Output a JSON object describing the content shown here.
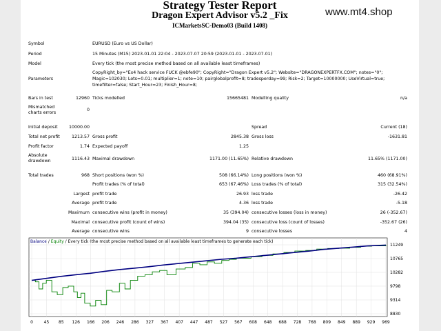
{
  "header": {
    "title": "Strategy Tester Report",
    "subtitle": "Dragon Expert Advisor v5.2 _Fix",
    "server": "ICMarketsSC-Demo03 (Build 1408)",
    "watermark": "www.mt4.shop"
  },
  "settings": {
    "symbol_label": "Symbol",
    "symbol_value": "EURUSD (Euro vs US Dollar)",
    "period_label": "Period",
    "period_value": "15 Minutes (M15) 2023.01.01 22:04 - 2023.07.07 20:59 (2023.01.01 - 2023.07.01)",
    "model_label": "Model",
    "model_value": "Every tick (the most precise method based on all available least timeframes)",
    "parameters_label": "Parameters",
    "parameters_line1": "CopyRight_by=\"Ex4 hack service FUCK @ebfe90\"; CopyRight=\"Dragon Expert v5.2\"; Website=\"DRAGONEXPERTFX.COM\"; notes=\"0\";",
    "parameters_line2": "Magic=102030; Lots=0.01; multiplier=1; note=10; pairglobalprofit=8; tradesperday=99; Risk=2; Target=10000000; UseVirtual=true;",
    "parameters_line3": "timefilter=false; Start_Hour=23; Finish_Hour=8;"
  },
  "test": {
    "bars_label": "Bars in test",
    "bars_value": "12960",
    "ticks_label": "Ticks modelled",
    "ticks_value": "15665481",
    "quality_label": "Modelling quality",
    "quality_value": "n/a",
    "mismatch_label_1": "Mismatched",
    "mismatch_label_2": "charts errors",
    "mismatch_value": "0"
  },
  "results": {
    "initial_deposit_label": "Initial deposit",
    "initial_deposit": "10000.00",
    "spread_label": "Spread",
    "spread_value": "Current (18)",
    "net_profit_label": "Total net profit",
    "net_profit": "1213.57",
    "gross_profit_label": "Gross profit",
    "gross_profit": "2845.38",
    "gross_loss_label": "Gross loss",
    "gross_loss": "-1631.81",
    "profit_factor_label": "Profit factor",
    "profit_factor": "1.74",
    "expected_payoff_label": "Expected payoff",
    "expected_payoff": "1.25",
    "abs_drawdown_label_1": "Absolute",
    "abs_drawdown_label_2": "drawdown",
    "abs_drawdown": "1116.43",
    "max_drawdown_label": "Maximal drawdown",
    "max_drawdown": "1171.00 (11.65%)",
    "rel_drawdown_label": "Relative drawdown",
    "rel_drawdown": "11.65% (1171.00)",
    "total_trades_label": "Total trades",
    "total_trades": "968",
    "short_label": "Short positions (won %)",
    "short_value": "508 (66.14%)",
    "long_label": "Long positions (won %)",
    "long_value": "460 (68.91%)",
    "profit_trades_label": "Profit trades (% of total)",
    "profit_trades": "653 (67.46%)",
    "loss_trades_label": "Loss trades (% of total)",
    "loss_trades": "315 (32.54%)",
    "largest_label": "Largest",
    "largest_profit_label": "profit trade",
    "largest_profit": "26.93",
    "largest_loss_label": "loss trade",
    "largest_loss": "-26.42",
    "average_label": "Average",
    "average_profit_label": "profit trade",
    "average_profit": "4.36",
    "average_loss_label": "loss trade",
    "average_loss": "-5.18",
    "maximum_label": "Maximum",
    "max_cons_wins_label": "consecutive wins (profit in money)",
    "max_cons_wins": "35 (394.04)",
    "max_cons_losses_label": "consecutive losses (loss in money)",
    "max_cons_losses": "26 (-352.67)",
    "maximal_label": "Maximal",
    "maximal_cons_profit_label": "consecutive profit (count of wins)",
    "maximal_cons_profit": "394.04 (35)",
    "maximal_cons_loss_label": "consecutive loss (count of losses)",
    "maximal_cons_loss": "-352.67 (26)",
    "avg_label": "Average",
    "avg_cons_wins_label": "consecutive wins",
    "avg_cons_wins": "9",
    "avg_cons_losses_label": "consecutive losses",
    "avg_cons_losses": "4"
  },
  "chart_data": {
    "type": "line",
    "legend_balance": "Balance",
    "legend_sep1": " / ",
    "legend_equity": "Equity",
    "legend_rest": " / Every tick (the most precise method based on all available least timeframes to generate each tick)",
    "x_ticks": [
      "0",
      "45",
      "85",
      "126",
      "166",
      "206",
      "246",
      "286",
      "327",
      "367",
      "407",
      "447",
      "487",
      "527",
      "567",
      "608",
      "648",
      "688",
      "728",
      "768",
      "809",
      "849",
      "889",
      "929",
      "969"
    ],
    "y_ticks": [
      "11249",
      "10765",
      "10282",
      "9798",
      "9314",
      "8830"
    ],
    "ylim": [
      8830,
      11249
    ],
    "xlim": [
      0,
      969
    ],
    "colors": {
      "balance": "#000080",
      "equity": "#008000",
      "legend_balance": "#000080",
      "legend_equity": "#008000"
    },
    "series": [
      {
        "name": "Balance",
        "x": [
          0,
          40,
          80,
          120,
          160,
          200,
          240,
          280,
          320,
          360,
          400,
          440,
          480,
          520,
          560,
          600,
          640,
          680,
          720,
          760,
          800,
          840,
          880,
          920,
          969
        ],
        "y": [
          10000,
          10070,
          10140,
          10200,
          10250,
          10320,
          10380,
          10430,
          10480,
          10540,
          10590,
          10640,
          10690,
          10740,
          10780,
          10830,
          10880,
          10930,
          10980,
          11030,
          11090,
          11130,
          11170,
          11210,
          11240
        ]
      },
      {
        "name": "Equity",
        "x": [
          0,
          10,
          20,
          30,
          40,
          55,
          70,
          85,
          100,
          115,
          125,
          135,
          145,
          160,
          175,
          190,
          205,
          220,
          240,
          255,
          270,
          290,
          310,
          330,
          350,
          370,
          395,
          420,
          440,
          460,
          480,
          500,
          520,
          540,
          560,
          580,
          600,
          630,
          660,
          690,
          720,
          750,
          780,
          810,
          840,
          870,
          900,
          930,
          969
        ],
        "y": [
          10000,
          9950,
          9700,
          9900,
          10000,
          9600,
          9500,
          9750,
          9800,
          9600,
          9400,
          9550,
          9200,
          9100,
          9300,
          9150,
          9650,
          9600,
          9900,
          9700,
          10000,
          10150,
          10200,
          10300,
          10350,
          10200,
          10400,
          10450,
          10600,
          10550,
          10650,
          10600,
          10700,
          10740,
          10780,
          10780,
          10830,
          10880,
          10930,
          10980,
          11030,
          11050,
          11100,
          11120,
          11130,
          11160,
          11200,
          11210,
          11240
        ]
      }
    ]
  }
}
